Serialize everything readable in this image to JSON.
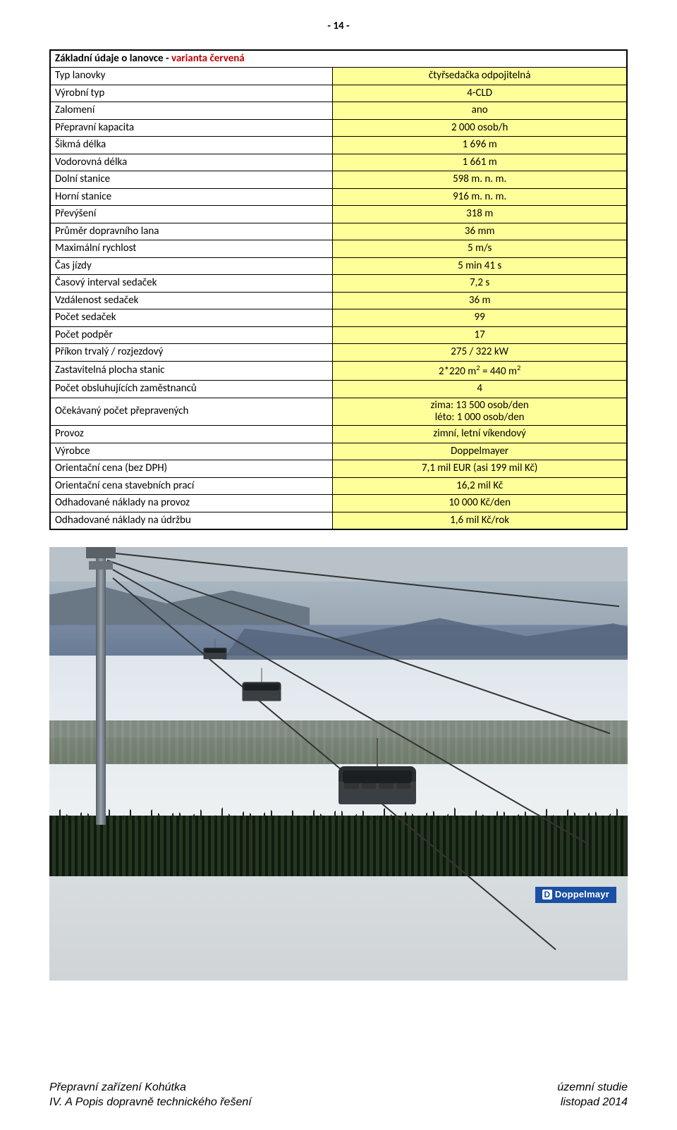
{
  "page_number_label": "- 14 -",
  "table": {
    "header_plain": "Základní údaje o lanovce - ",
    "header_variant": "varianta červená",
    "rows": [
      {
        "label": "Typ lanovky",
        "value": "čtyřsedačka odpojitelná"
      },
      {
        "label": "Výrobní typ",
        "value": "4-CLD"
      },
      {
        "label": "Zalomení",
        "value": "ano"
      },
      {
        "label": "Přepravní kapacita",
        "value": "2 000 osob/h"
      },
      {
        "label": "Šikmá délka",
        "value": "1 696 m"
      },
      {
        "label": "Vodorovná délka",
        "value": "1 661 m"
      },
      {
        "label": "Dolní stanice",
        "value": "598 m. n. m."
      },
      {
        "label": "Horní stanice",
        "value": "916 m. n. m."
      },
      {
        "label": "Převýšení",
        "value": "318 m"
      },
      {
        "label": "Průměr dopravního lana",
        "value": "36 mm"
      },
      {
        "label": "Maximální rychlost",
        "value": "5 m/s"
      },
      {
        "label": "Čas jízdy",
        "value": "5 min 41 s"
      },
      {
        "label": "Časový interval sedaček",
        "value": "7,2 s"
      },
      {
        "label": "Vzdálenost sedaček",
        "value": "36 m"
      },
      {
        "label": "Počet sedaček",
        "value": "99"
      },
      {
        "label": "Počet podpěr",
        "value": "17"
      },
      {
        "label": "Příkon trvalý / rozjezdový",
        "value": "275 / 322 kW"
      },
      {
        "label": "Zastavitelná plocha stanic",
        "value_html": "2*220 m<span class=\"sup\">2</span> = 440 m<span class=\"sup\">2</span>"
      },
      {
        "label": "Počet obsluhujících zaměstnanců",
        "value": "4"
      },
      {
        "label": "Očekávaný počet přepravených",
        "value_html": "zima: 13 500 osob/den<br>léto: 1 000 osob/den",
        "twoline": true
      },
      {
        "label": "Provoz",
        "value": "zimní, letní víkendový"
      },
      {
        "label": "Výrobce",
        "value": "Doppelmayer"
      },
      {
        "label": "Orientační cena (bez DPH)",
        "value": "7,1 mil EUR (asi 199 mil Kč)"
      },
      {
        "label": "Orientační cena stavebních prací",
        "value": "16,2 mil Kč"
      },
      {
        "label": "Odhadované náklady na provoz",
        "value": "10 000 Kč/den"
      },
      {
        "label": "Odhadované náklady na údržbu",
        "value": "1,6 mil Kč/rok"
      }
    ]
  },
  "watermark_text": "Doppelmayr",
  "footer": {
    "left_line1": "Přepravní zařízení Kohútka",
    "left_line2": "IV. A Popis dopravně technického řešení",
    "right_line1": "územní studie",
    "right_line2": "listopad 2014"
  },
  "colors": {
    "value_bg": "#ffff99",
    "variant_red": "#c00000",
    "border": "#000000"
  }
}
